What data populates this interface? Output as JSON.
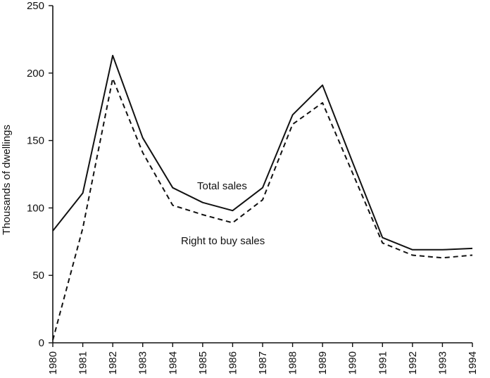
{
  "chart_data": {
    "type": "line",
    "title": "",
    "xlabel": "",
    "ylabel": "Thousands of dwellings",
    "ylim": [
      0,
      250
    ],
    "yticks": [
      0,
      50,
      100,
      150,
      200,
      250
    ],
    "categories": [
      "1980",
      "1981",
      "1982",
      "1983",
      "1984",
      "1985",
      "1986",
      "1987",
      "1988",
      "1989",
      "1990",
      "1991",
      "1992",
      "1993",
      "1994"
    ],
    "series": [
      {
        "name": "Total sales",
        "style": "solid",
        "values": [
          83,
          111,
          213,
          152,
          115,
          104,
          98,
          115,
          169,
          191,
          134,
          78,
          69,
          69,
          70
        ]
      },
      {
        "name": "Right to buy sales",
        "style": "dashed",
        "values": [
          2,
          85,
          196,
          141,
          102,
          95,
          89,
          106,
          162,
          178,
          126,
          74,
          65,
          63,
          65
        ]
      }
    ],
    "annotations": [
      {
        "text": "Total sales",
        "series": "Total sales"
      },
      {
        "text": "Right to buy sales",
        "series": "Right to buy sales"
      }
    ],
    "grid": false,
    "legend": "none"
  }
}
